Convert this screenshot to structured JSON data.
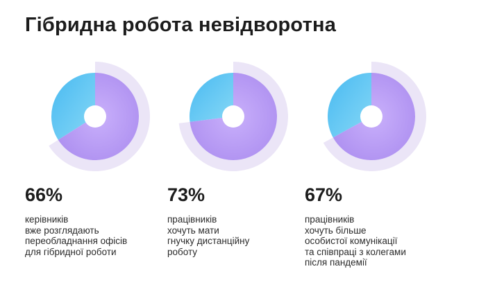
{
  "title": "Гібридна робота невідворотна",
  "colors": {
    "main": "#b69af3",
    "rest": "#5ec8f4",
    "halo": "#ebe5f7",
    "hole": "#ffffff"
  },
  "chart_data": {
    "type": "pie",
    "title": "Гібридна робота невідворотна",
    "unit": "%",
    "items": [
      {
        "value": 66,
        "label": "66%",
        "lines": [
          "керівників",
          "вже розглядають",
          "переобладнання офісів",
          "для гібридної роботи"
        ]
      },
      {
        "value": 73,
        "label": "73%",
        "lines": [
          "працівників",
          "хочуть мати",
          "гнучку дистанційну",
          "роботу"
        ]
      },
      {
        "value": 67,
        "label": "67%",
        "lines": [
          "працівників",
          "хочуть більше",
          "особистої комунікації",
          "та співпраці з колегами",
          "після пандемії"
        ]
      }
    ]
  }
}
